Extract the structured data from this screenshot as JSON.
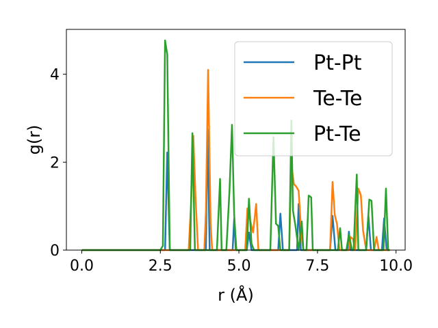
{
  "chart_data": {
    "type": "line",
    "xlabel": "r (Å)",
    "ylabel": "g(r)",
    "xlim": [
      -0.49,
      10.29
    ],
    "ylim": [
      0,
      5.02
    ],
    "xticks": [
      0.0,
      2.5,
      5.0,
      7.5,
      10.0
    ],
    "xtick_labels": [
      "0.0",
      "2.5",
      "5.0",
      "7.5",
      "10.0"
    ],
    "yticks": [
      0,
      2,
      4
    ],
    "ytick_labels": [
      "0",
      "2",
      "4"
    ],
    "grid": false,
    "legend_position": "top-right",
    "series": [
      {
        "name": "Pt-Pt",
        "color": "#1f77b4",
        "x": [
          0.0,
          2.6,
          2.65,
          2.72,
          2.8,
          3.9,
          3.95,
          4.0,
          4.07,
          4.15,
          4.8,
          4.85,
          4.9,
          5.25,
          5.32,
          5.4,
          6.25,
          6.32,
          6.4,
          6.85,
          6.9,
          6.97,
          7.05,
          7.9,
          7.98,
          8.07,
          8.45,
          8.5,
          8.55,
          9.05,
          9.12,
          9.2,
          9.55,
          9.62,
          9.7,
          9.8
        ],
        "y": [
          0.0,
          0.0,
          0.0,
          2.22,
          0.0,
          0.0,
          0.0,
          2.75,
          0.0,
          0.0,
          0.0,
          0.72,
          0.0,
          0.0,
          0.4,
          0.0,
          0.0,
          0.83,
          0.0,
          0.0,
          1.05,
          0.0,
          0.0,
          0.0,
          0.78,
          0.0,
          0.0,
          0.42,
          0.0,
          0.0,
          0.8,
          0.0,
          0.0,
          0.72,
          0.0,
          0.0
        ]
      },
      {
        "name": "Te-Te",
        "color": "#ff7f0e",
        "x": [
          0.0,
          3.4,
          3.48,
          3.55,
          3.62,
          3.7,
          3.9,
          3.95,
          4.02,
          4.1,
          4.15,
          5.2,
          5.27,
          5.35,
          5.45,
          5.55,
          5.62,
          5.7,
          6.6,
          6.67,
          6.75,
          6.82,
          6.9,
          6.98,
          7.05,
          7.9,
          7.98,
          8.05,
          8.12,
          8.2,
          8.5,
          8.55,
          8.63,
          8.7,
          8.8,
          8.88,
          8.95,
          9.05,
          9.3,
          9.38,
          9.45,
          9.8
        ],
        "y": [
          0.0,
          0.0,
          1.1,
          2.6,
          1.2,
          0.0,
          0.0,
          0.9,
          4.1,
          0.6,
          0.0,
          0.0,
          0.95,
          0.7,
          0.4,
          1.05,
          0.0,
          0.0,
          0.0,
          1.95,
          1.5,
          1.45,
          1.35,
          0.45,
          0.0,
          0.0,
          1.55,
          0.8,
          0.6,
          0.0,
          0.0,
          0.3,
          0.25,
          0.0,
          1.4,
          1.25,
          0.45,
          0.0,
          0.0,
          0.3,
          0.0,
          0.0
        ]
      },
      {
        "name": "Pt-Te",
        "color": "#2ca02c",
        "x": [
          0.0,
          2.5,
          2.58,
          2.65,
          2.72,
          2.8,
          3.45,
          3.52,
          3.6,
          4.3,
          4.4,
          4.45,
          4.5,
          4.6,
          4.7,
          4.78,
          4.85,
          4.92,
          5.25,
          5.32,
          5.4,
          5.48,
          5.6,
          6.0,
          6.1,
          6.18,
          6.25,
          6.32,
          6.4,
          6.6,
          6.67,
          6.72,
          6.8,
          6.9,
          7.0,
          7.05,
          7.15,
          7.22,
          7.3,
          7.35,
          8.15,
          8.22,
          8.28,
          8.35,
          8.42,
          8.5,
          8.6,
          8.65,
          8.7,
          8.75,
          8.8,
          8.87,
          8.95,
          9.05,
          9.15,
          9.22,
          9.3,
          9.35,
          9.5,
          9.6,
          9.68,
          9.75,
          9.8
        ],
        "y": [
          0.0,
          0.0,
          0.1,
          4.77,
          4.45,
          0.0,
          0.0,
          2.66,
          0.0,
          0.0,
          1.62,
          0.0,
          0.0,
          0.0,
          1.35,
          2.85,
          0.8,
          0.0,
          0.0,
          1.17,
          0.15,
          0.0,
          0.0,
          0.0,
          2.57,
          0.6,
          0.55,
          0.0,
          0.0,
          0.0,
          2.95,
          0.9,
          0.55,
          0.0,
          0.65,
          0.0,
          0.0,
          1.24,
          1.2,
          0.0,
          0.0,
          0.5,
          0.0,
          0.0,
          0.0,
          0.35,
          0.0,
          0.0,
          0.9,
          1.72,
          0.0,
          0.0,
          0.0,
          0.0,
          1.15,
          1.12,
          0.0,
          0.0,
          0.0,
          0.0,
          1.4,
          0.0,
          0.0
        ]
      }
    ]
  }
}
